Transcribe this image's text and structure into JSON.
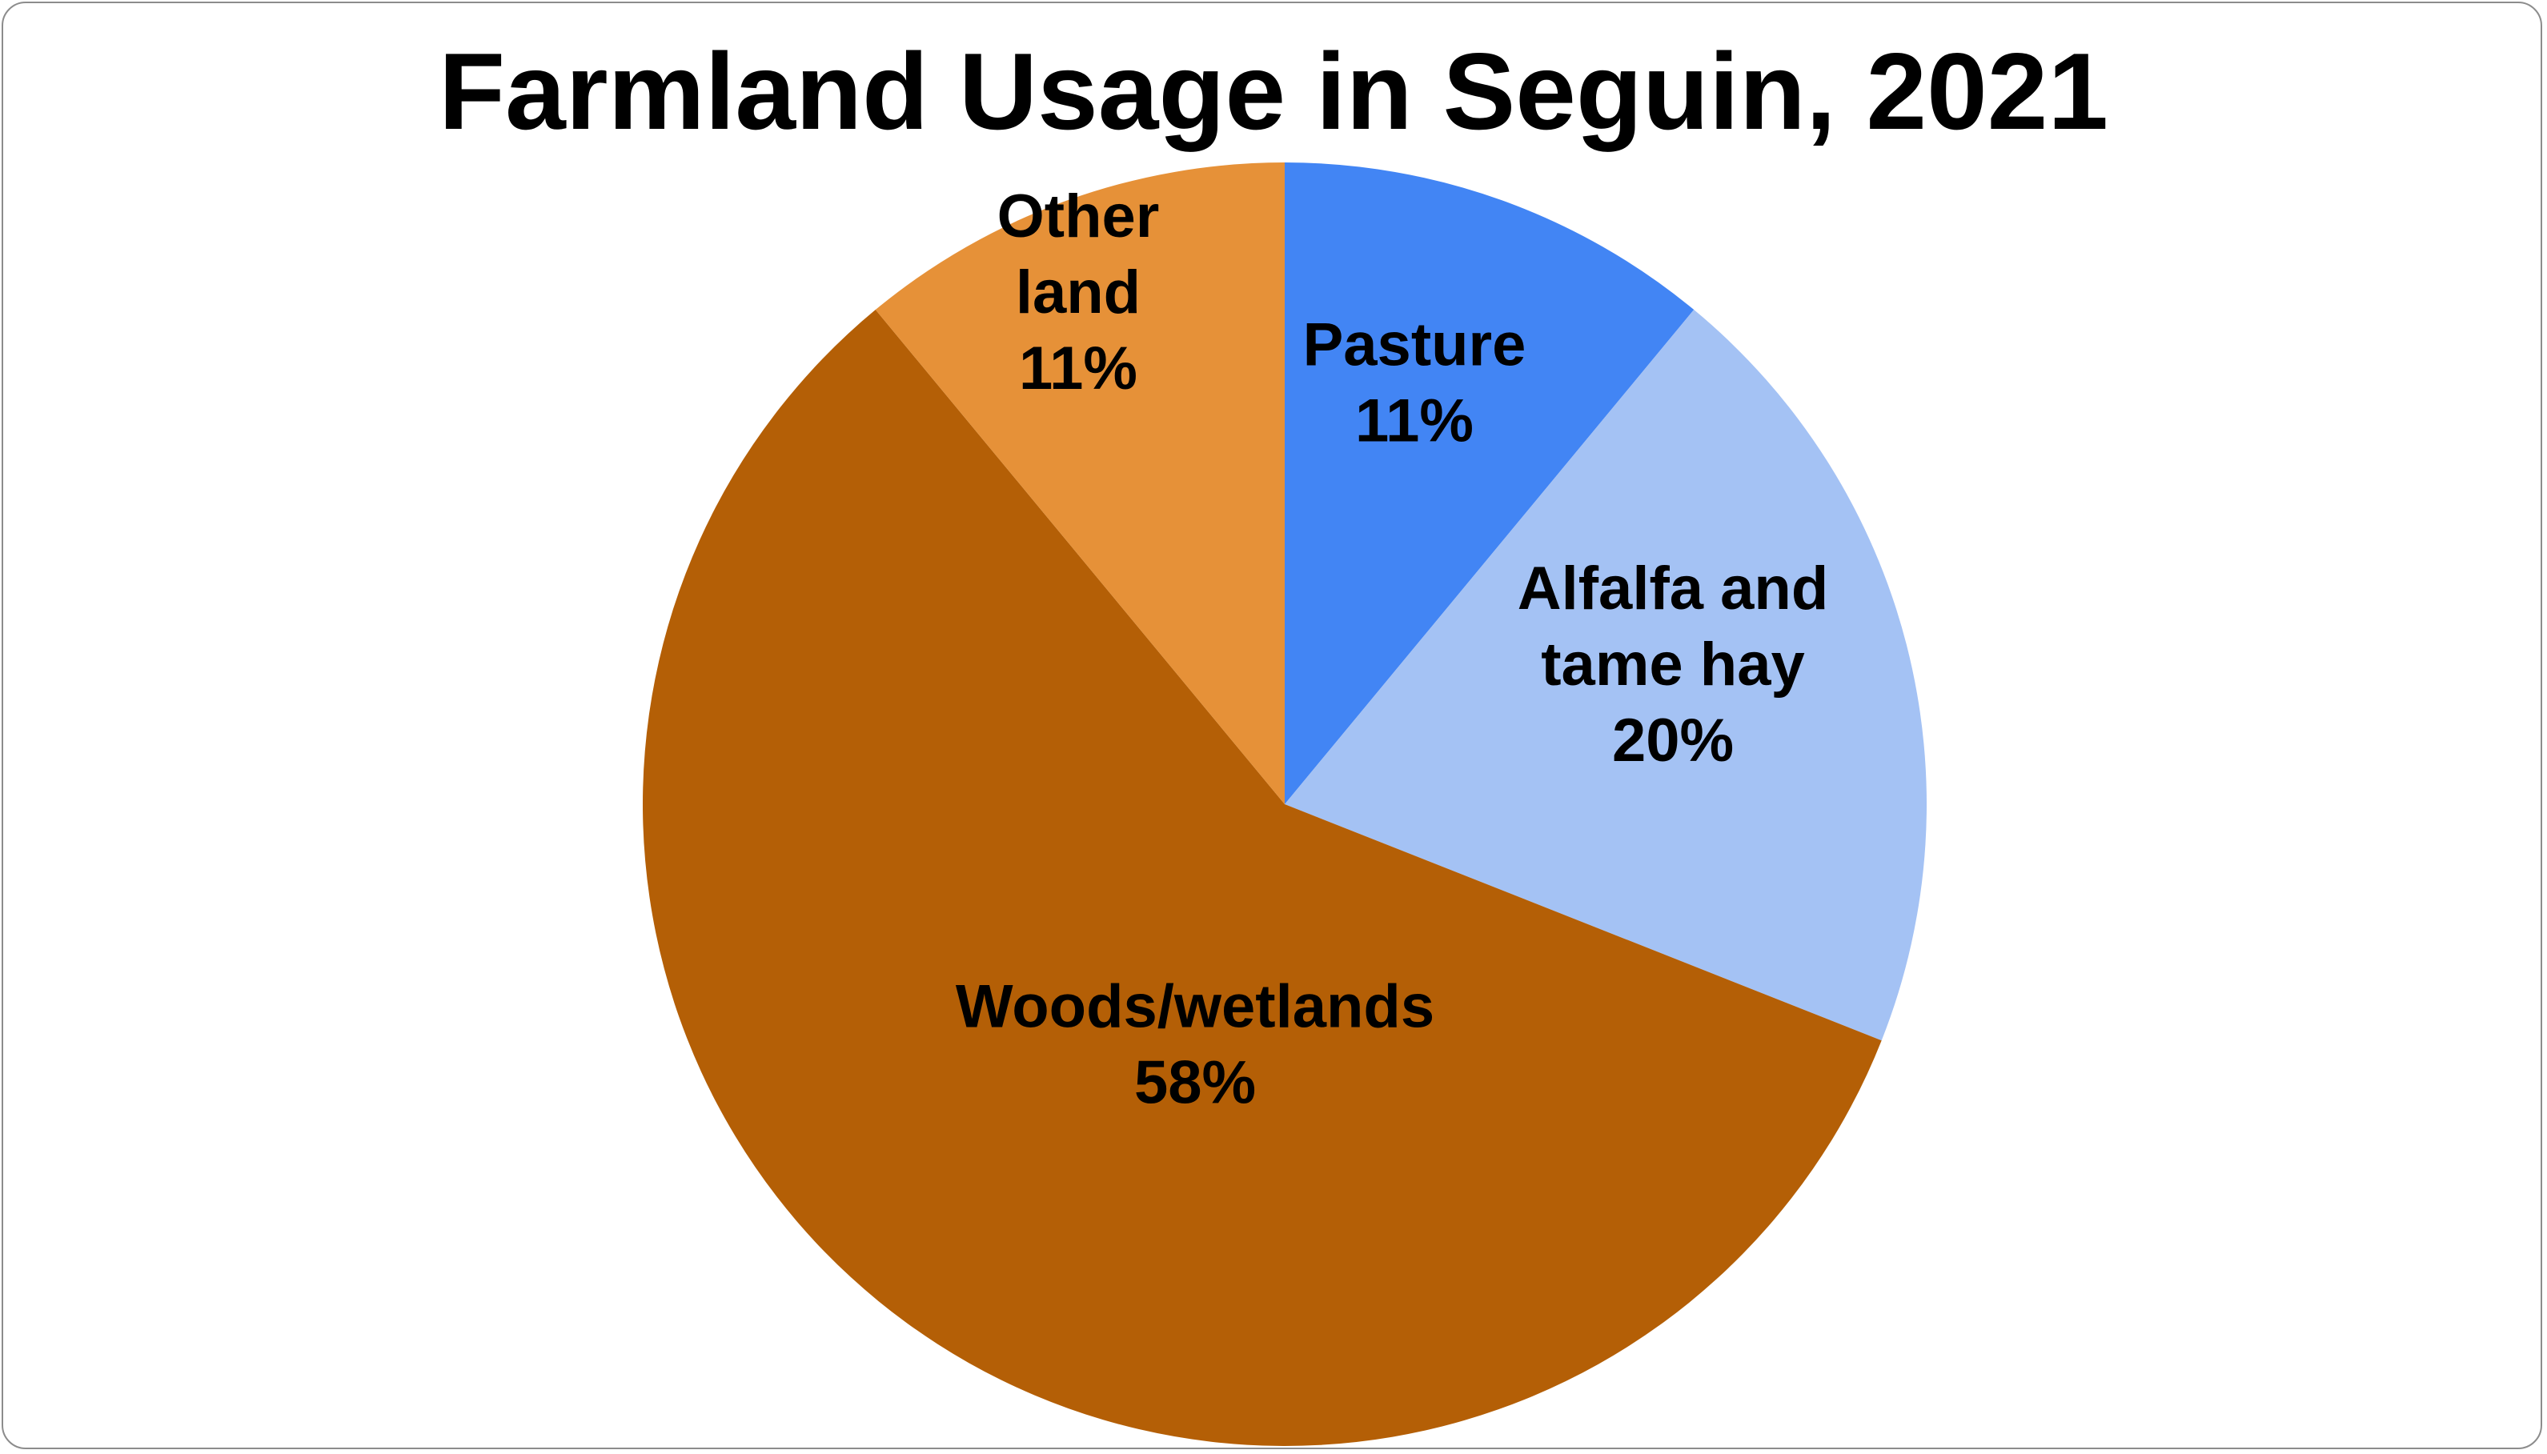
{
  "chart_data": {
    "type": "pie",
    "title": "Farmland Usage in Seguin, 2021",
    "start_angle_deg": 0,
    "direction": "clockwise",
    "slices": [
      {
        "name": "Pasture",
        "value": 11,
        "label_lines": [
          "Pasture",
          "11%"
        ],
        "color": "#4285f4"
      },
      {
        "name": "Alfalfa and tame hay",
        "value": 20,
        "label_lines": [
          "Alfalfa and",
          "tame hay",
          "20%"
        ],
        "color": "#a4c2f4"
      },
      {
        "name": "Woods/wetlands",
        "value": 58,
        "label_lines": [
          "Woods/wetlands",
          "58%"
        ],
        "color": "#b45f06"
      },
      {
        "name": "Other land",
        "value": 11,
        "label_lines": [
          "Other",
          "land",
          "11%"
        ],
        "color": "#e69138"
      }
    ]
  }
}
